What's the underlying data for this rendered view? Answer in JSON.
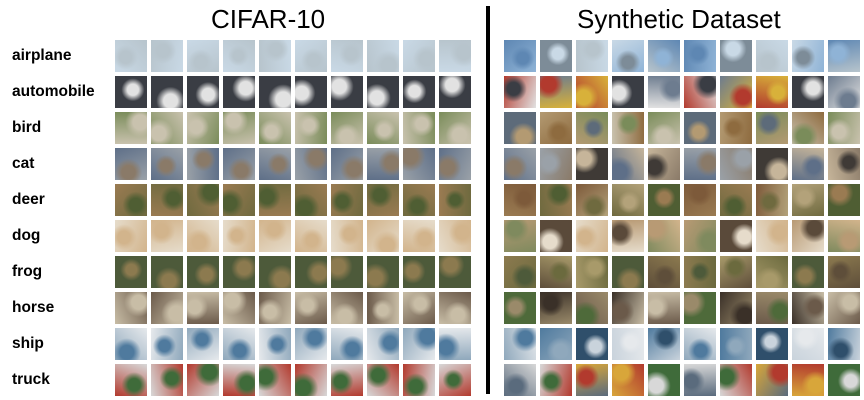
{
  "titles": {
    "left": "CIFAR-10",
    "right": "Synthetic Dataset"
  },
  "classes": [
    {
      "label": "airplane",
      "palette": [
        "#8fb3d6",
        "#c9d9e6",
        "#7d8c98",
        "#5e87b3",
        "#b7c4cc"
      ]
    },
    {
      "label": "automobile",
      "palette": [
        "#b23a2e",
        "#e2e2e2",
        "#3a3d44",
        "#d8b13a",
        "#6d7c8f"
      ]
    },
    {
      "label": "bird",
      "palette": [
        "#7a8c5a",
        "#b39a72",
        "#5d6b7a",
        "#c9c2ae",
        "#8e6b3f"
      ]
    },
    {
      "label": "cat",
      "palette": [
        "#8a7a68",
        "#c6b59a",
        "#3f3a36",
        "#9aa1a8",
        "#5e6f88"
      ]
    },
    {
      "label": "deer",
      "palette": [
        "#6f6a3f",
        "#9a7b52",
        "#4f5e33",
        "#b3a27a",
        "#7d5a3a"
      ]
    },
    {
      "label": "dog",
      "palette": [
        "#b89a74",
        "#e6dccb",
        "#5a4a3a",
        "#7f8a5e",
        "#d2b48c"
      ]
    },
    {
      "label": "frog",
      "palette": [
        "#6b6a3e",
        "#8c7a4f",
        "#4d5a3a",
        "#a89a6a",
        "#5e4e3a"
      ]
    },
    {
      "label": "horse",
      "palette": [
        "#6b5a4a",
        "#9a8a6a",
        "#4e6a3a",
        "#c8bda6",
        "#3a3028"
      ]
    },
    {
      "label": "ship",
      "palette": [
        "#4f7a9e",
        "#c9d3dc",
        "#2f4f6b",
        "#8fa8bc",
        "#e6e9ec"
      ]
    },
    {
      "label": "truck",
      "palette": [
        "#b23a2e",
        "#d8d8d8",
        "#3f6b3a",
        "#d8a63a",
        "#5a6b7d"
      ]
    }
  ],
  "grid": {
    "columns": 10
  }
}
